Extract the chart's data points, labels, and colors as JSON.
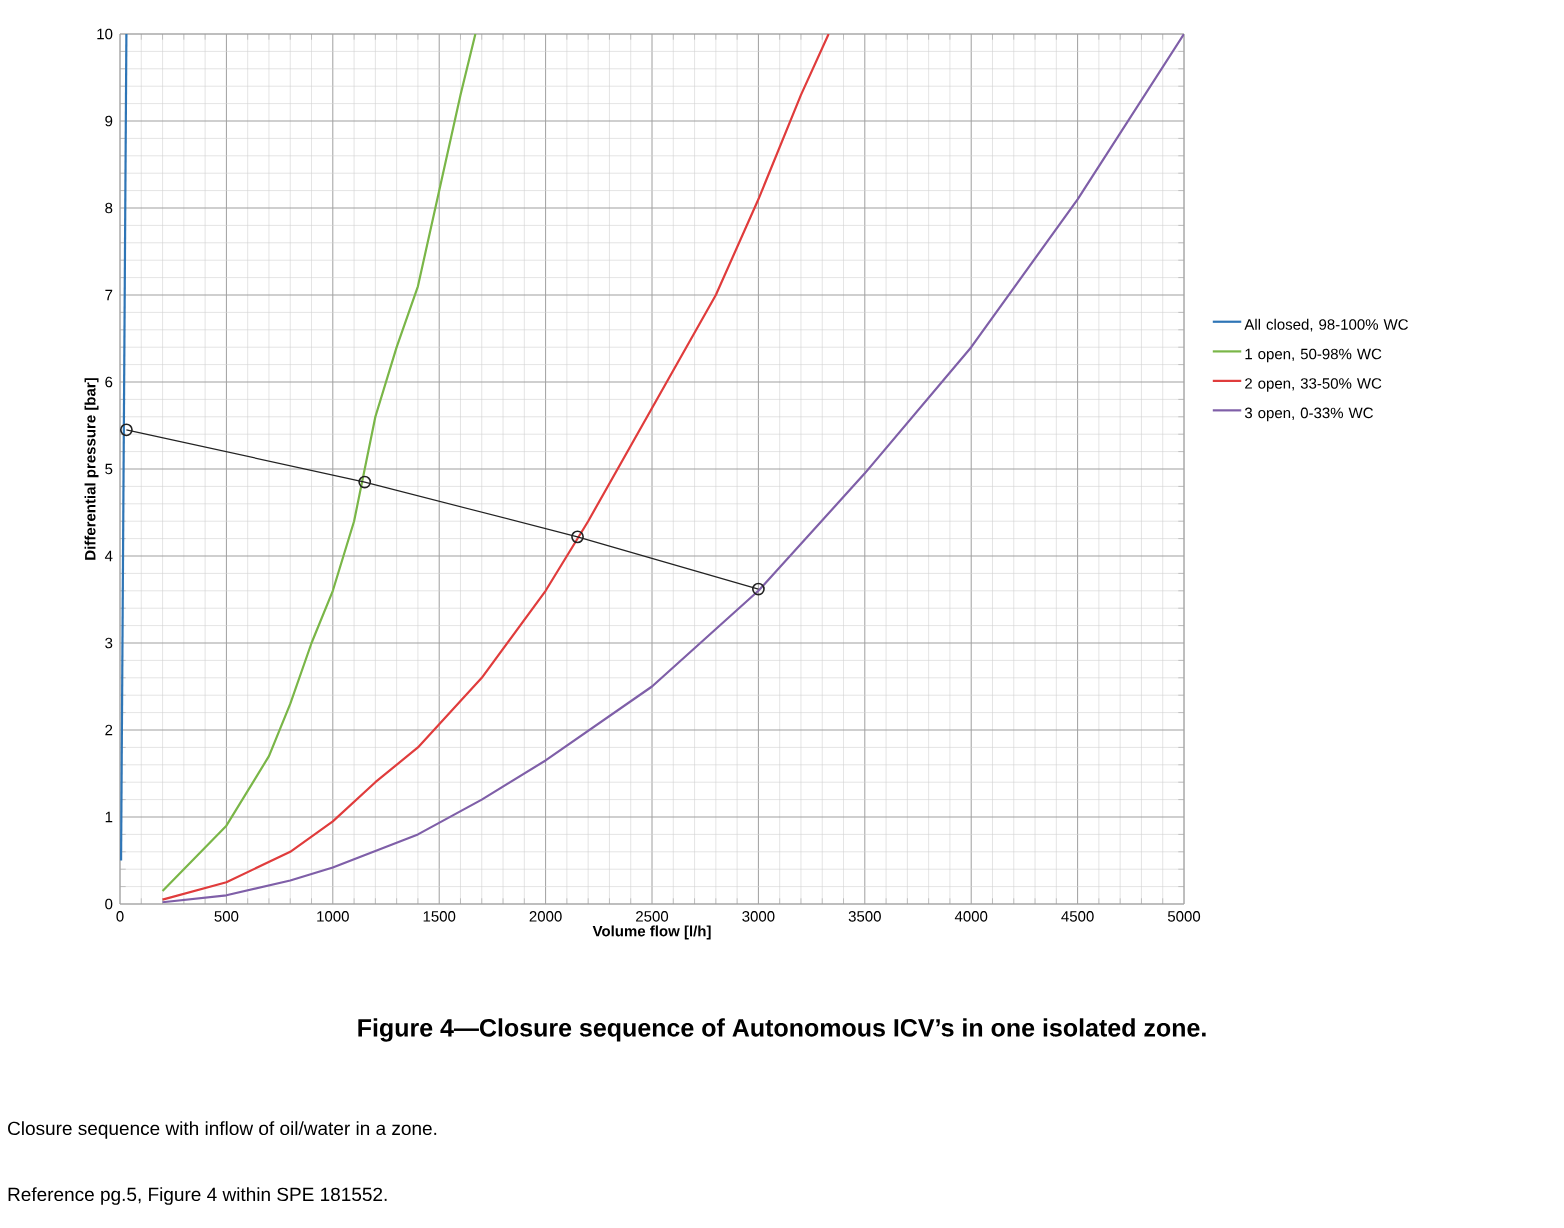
{
  "chart_data": {
    "type": "line",
    "title": "Figure 4—Closure sequence of Autonomous ICV’s in one isolated zone.",
    "xlabel": "Volume flow [l/h]",
    "ylabel": "Differential pressure [bar]",
    "xlim": [
      0,
      5000
    ],
    "ylim": [
      0,
      10
    ],
    "xticks": [
      0,
      500,
      1000,
      1500,
      2000,
      2500,
      3000,
      3500,
      4000,
      4500,
      5000
    ],
    "yticks": [
      0,
      1,
      2,
      3,
      4,
      5,
      6,
      7,
      8,
      9,
      10
    ],
    "grid": true,
    "legend": "right",
    "marker": "none",
    "line_style": "solid",
    "series": [
      {
        "name": "All closed, 98-100% WC",
        "color": "#2e75b6",
        "x": [
          5,
          30
        ],
        "values": [
          0.5,
          10
        ]
      },
      {
        "name": "1 open, 50-98% WC",
        "color": "#7ab648",
        "x": [
          200,
          500,
          700,
          800,
          900,
          1000,
          1100,
          1200,
          1300,
          1400,
          1500,
          1600,
          1670
        ],
        "values": [
          0.15,
          0.9,
          1.7,
          2.3,
          3.0,
          3.6,
          4.4,
          5.6,
          6.4,
          7.1,
          8.2,
          9.3,
          10
        ]
      },
      {
        "name": "2 open, 33-50% WC",
        "color": "#e03c3c",
        "x": [
          200,
          500,
          800,
          1000,
          1200,
          1400,
          1700,
          2000,
          2200,
          2500,
          2800,
          3000,
          3200,
          3330
        ],
        "values": [
          0.05,
          0.25,
          0.6,
          0.95,
          1.4,
          1.8,
          2.6,
          3.6,
          4.4,
          5.7,
          7.0,
          8.1,
          9.3,
          10
        ]
      },
      {
        "name": "3 open, 0-33% WC",
        "color": "#7f5fa8",
        "x": [
          200,
          500,
          800,
          1000,
          1400,
          1700,
          2000,
          2500,
          3000,
          3500,
          4000,
          4500,
          5000
        ],
        "values": [
          0.02,
          0.1,
          0.27,
          0.42,
          0.8,
          1.2,
          1.65,
          2.5,
          3.6,
          4.95,
          6.4,
          8.1,
          10
        ]
      },
      {
        "color": "#222222",
        "marker": "circle",
        "x": [
          3000,
          2150,
          1150,
          30
        ],
        "values": [
          3.62,
          4.22,
          4.85,
          5.45
        ]
      }
    ],
    "annotations": [
      "Closure sequence with inflow of oil/water in a zone.",
      "Reference pg.5, Figure 4 within SPE 181552."
    ]
  }
}
